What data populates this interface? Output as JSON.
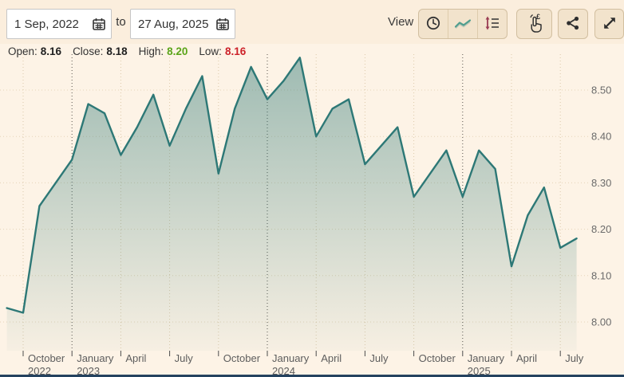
{
  "date_range": {
    "start_value": "1 Sep, 2022",
    "separator": "to",
    "end_value": "27 Aug, 2025"
  },
  "view": {
    "label": "View",
    "buttons": [
      {
        "icon": "clock-icon",
        "active": false
      },
      {
        "icon": "line-chart-icon",
        "active": true
      },
      {
        "icon": "price-scale-icon",
        "active": false
      }
    ],
    "tools": [
      {
        "icon": "touch-pound-icon"
      },
      {
        "icon": "share-icon"
      },
      {
        "icon": "expand-icon"
      }
    ]
  },
  "stats": {
    "open_label": "Open:",
    "open_value": "8.16",
    "close_label": "Close:",
    "close_value": "8.18",
    "high_label": "High:",
    "high_value": "8.20",
    "low_label": "Low:",
    "low_value": "8.16"
  },
  "colors": {
    "line": "#2d7876",
    "fill_top": "rgba(45,120,117,0.46)",
    "fill_bottom": "rgba(45,120,117,0.03)",
    "high_green": "#5aa419",
    "low_red": "#cc2129",
    "bottom_strip_navy": "#24425f"
  },
  "chart_data": {
    "type": "area",
    "title": "",
    "xlabel": "",
    "ylabel": "",
    "ylim": [
      7.94,
      8.58
    ],
    "grid": true,
    "legend": "none",
    "x": [
      "Sep 2022",
      "Oct 2022",
      "Nov 2022",
      "Dec 2022",
      "Jan 2023",
      "Feb 2023",
      "Mar 2023",
      "Apr 2023",
      "May 2023",
      "Jun 2023",
      "Jul 2023",
      "Aug 2023",
      "Sep 2023",
      "Oct 2023",
      "Nov 2023",
      "Dec 2023",
      "Jan 2024",
      "Feb 2024",
      "Mar 2024",
      "Apr 2024",
      "May 2024",
      "Jun 2024",
      "Jul 2024",
      "Aug 2024",
      "Sep 2024",
      "Oct 2024",
      "Nov 2024",
      "Dec 2024",
      "Jan 2025",
      "Feb 2025",
      "Mar 2025",
      "Apr 2025",
      "May 2025",
      "Jun 2025",
      "Jul 2025",
      "Aug 2025"
    ],
    "values": [
      8.03,
      8.02,
      8.25,
      8.3,
      8.35,
      8.47,
      8.45,
      8.36,
      8.42,
      8.49,
      8.38,
      8.46,
      8.53,
      8.32,
      8.46,
      8.55,
      8.48,
      8.52,
      8.57,
      8.4,
      8.46,
      8.48,
      8.34,
      8.38,
      8.42,
      8.27,
      8.32,
      8.37,
      8.27,
      8.37,
      8.33,
      8.12,
      8.23,
      8.29,
      8.16,
      8.18
    ],
    "line_color": "#2d7876",
    "fill_top": "rgba(45,120,117,0.46)",
    "fill_bottom": "rgba(45,120,117,0.03)",
    "x_ticks": [
      {
        "month_index": 1,
        "label": "October",
        "year": "2022",
        "major": false
      },
      {
        "month_index": 4,
        "label": "January",
        "year": "2023",
        "major": true
      },
      {
        "month_index": 7,
        "label": "April",
        "major": false
      },
      {
        "month_index": 10,
        "label": "July",
        "major": false
      },
      {
        "month_index": 13,
        "label": "October",
        "major": false
      },
      {
        "month_index": 16,
        "label": "January",
        "year": "2024",
        "major": true
      },
      {
        "month_index": 19,
        "label": "April",
        "major": false
      },
      {
        "month_index": 22,
        "label": "July",
        "major": false
      },
      {
        "month_index": 25,
        "label": "October",
        "major": false
      },
      {
        "month_index": 28,
        "label": "January",
        "year": "2025",
        "major": true
      },
      {
        "month_index": 31,
        "label": "April",
        "major": false
      },
      {
        "month_index": 34,
        "label": "July",
        "major": false
      }
    ],
    "y_ticks": [
      {
        "value": 8.5,
        "label": "8.50"
      },
      {
        "value": 8.4,
        "label": "8.40"
      },
      {
        "value": 8.3,
        "label": "8.30"
      },
      {
        "value": 8.2,
        "label": "8.20"
      },
      {
        "value": 8.1,
        "label": "8.10"
      },
      {
        "value": 8.0,
        "label": "8.00"
      }
    ]
  }
}
